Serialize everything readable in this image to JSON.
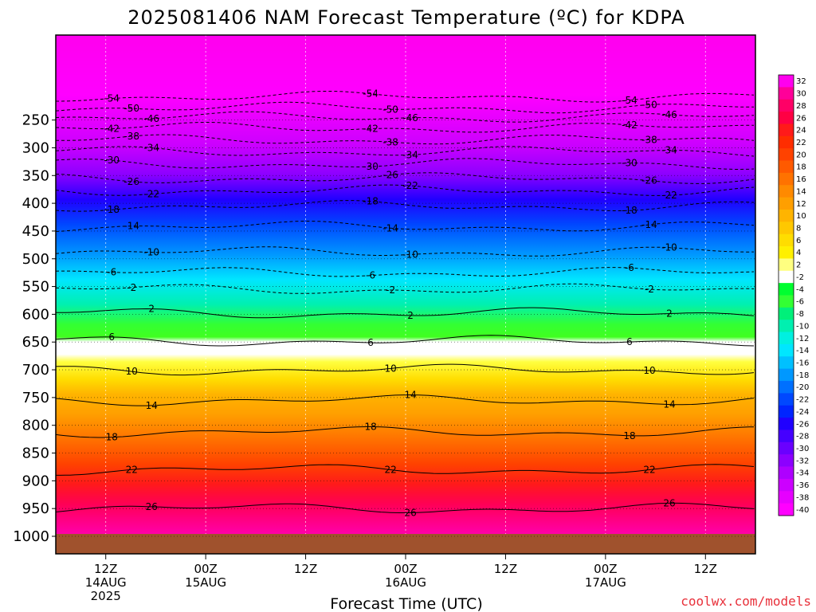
{
  "page": {
    "title": "2025081406 NAM Forecast Temperature (ºC) for KDPA",
    "credit": "coolwx.com/models"
  },
  "chart_data": {
    "type": "heatmap",
    "title": "2025081406 NAM Forecast Temperature (ºC) for KDPA",
    "xlabel": "Forecast Time (UTC)",
    "ylabel": "",
    "x_range_hours": [
      0,
      84
    ],
    "y_range_hpa": [
      200,
      1000
    ],
    "y_ticks": [
      250,
      300,
      350,
      400,
      450,
      500,
      550,
      600,
      650,
      700,
      750,
      800,
      850,
      900,
      950,
      1000
    ],
    "x_ticks": [
      {
        "hour": 6,
        "time": "12Z",
        "date": "14AUG",
        "year": "2025"
      },
      {
        "hour": 18,
        "time": "00Z",
        "date": "15AUG",
        "year": ""
      },
      {
        "hour": 30,
        "time": "12Z",
        "date": "",
        "year": ""
      },
      {
        "hour": 42,
        "time": "00Z",
        "date": "16AUG",
        "year": ""
      },
      {
        "hour": 54,
        "time": "12Z",
        "date": "",
        "year": ""
      },
      {
        "hour": 66,
        "time": "00Z",
        "date": "17AUG",
        "year": ""
      },
      {
        "hour": 78,
        "time": "12Z",
        "date": "",
        "year": ""
      }
    ],
    "colorbar": {
      "levels": [
        32,
        30,
        28,
        26,
        24,
        22,
        20,
        18,
        16,
        14,
        12,
        10,
        8,
        6,
        4,
        2,
        -2,
        -4,
        -6,
        -8,
        -10,
        -12,
        -14,
        -16,
        -18,
        -20,
        -22,
        -24,
        -26,
        -28,
        -30,
        -32,
        -34,
        -36,
        -38,
        -40
      ],
      "colors": [
        "#ff00ee",
        "#ff0099",
        "#ff0066",
        "#ff0044",
        "#ff1a1a",
        "#ff2d00",
        "#ff4200",
        "#ff5a00",
        "#ff7200",
        "#ff8a00",
        "#ff9f00",
        "#ffb400",
        "#ffc800",
        "#ffdd00",
        "#fff000",
        "#ffff80",
        "#ffffff",
        "#00ff30",
        "#33ff33",
        "#00f07a",
        "#00f0b0",
        "#00f0e0",
        "#00e6ff",
        "#00c0ff",
        "#0098ff",
        "#0070ff",
        "#0048ff",
        "#0025ff",
        "#2000ff",
        "#4500ff",
        "#6a00ff",
        "#8c00ff",
        "#ae00ff",
        "#cc00ff",
        "#e600ff",
        "#ff00ff"
      ]
    },
    "contours": [
      {
        "value": -54,
        "pressure_hpa": 208
      },
      {
        "value": -50,
        "pressure_hpa": 228
      },
      {
        "value": -46,
        "pressure_hpa": 245
      },
      {
        "value": -42,
        "pressure_hpa": 264
      },
      {
        "value": -38,
        "pressure_hpa": 286
      },
      {
        "value": -34,
        "pressure_hpa": 307
      },
      {
        "value": -30,
        "pressure_hpa": 329
      },
      {
        "value": -26,
        "pressure_hpa": 355
      },
      {
        "value": -22,
        "pressure_hpa": 377
      },
      {
        "value": -18,
        "pressure_hpa": 405
      },
      {
        "value": -14,
        "pressure_hpa": 442
      },
      {
        "value": -10,
        "pressure_hpa": 488
      },
      {
        "value": -6,
        "pressure_hpa": 525
      },
      {
        "value": -2,
        "pressure_hpa": 555
      },
      {
        "value": 2,
        "pressure_hpa": 598
      },
      {
        "value": 6,
        "pressure_hpa": 648
      },
      {
        "value": 10,
        "pressure_hpa": 700
      },
      {
        "value": 14,
        "pressure_hpa": 755
      },
      {
        "value": 18,
        "pressure_hpa": 812
      },
      {
        "value": 22,
        "pressure_hpa": 880
      },
      {
        "value": 26,
        "pressure_hpa": 950
      }
    ],
    "ground_color": "#a0522d"
  }
}
